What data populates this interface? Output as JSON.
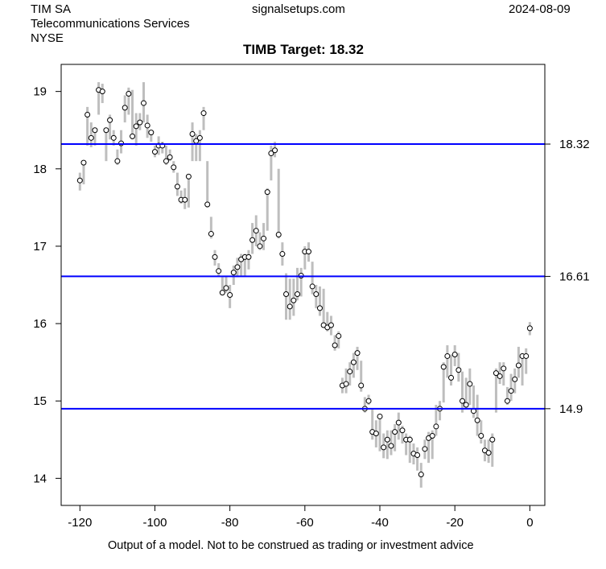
{
  "header": {
    "company": "TIM SA",
    "sector": "Telecommunications Services",
    "exchange": "NYSE",
    "site": "signalsetups.com",
    "date": "2024-08-09"
  },
  "footer": "Output of a model. Not to be construed as trading or investment advice",
  "colors": {
    "target_line": "#0000ff",
    "bar": "#bebebe",
    "point": "#000000"
  },
  "chart_data": {
    "type": "scatter",
    "title": "TIMB Target: 18.32",
    "xlabel": "",
    "ylabel": "",
    "xlim": [
      -125,
      4
    ],
    "ylim": [
      13.65,
      19.35
    ],
    "xticks": [
      -120,
      -100,
      -80,
      -60,
      -40,
      -20,
      0
    ],
    "xtick_labels": [
      "-120",
      "-100",
      "-80",
      "-60",
      "-40",
      "-20",
      "0"
    ],
    "yticks": [
      14,
      15,
      16,
      17,
      18,
      19
    ],
    "ytick_labels": [
      "14",
      "15",
      "16",
      "17",
      "18",
      "19"
    ],
    "hlines": [
      {
        "value": 18.32,
        "label": "18.32"
      },
      {
        "value": 16.61,
        "label": "16.61"
      },
      {
        "value": 14.9,
        "label": "14.9"
      }
    ],
    "points_format": "[x, close, low, high]",
    "points": [
      [
        -120,
        17.85,
        17.72,
        17.95
      ],
      [
        -119,
        18.08,
        17.8,
        18.1
      ],
      [
        -118,
        18.7,
        18.3,
        18.8
      ],
      [
        -117,
        18.4,
        18.28,
        18.6
      ],
      [
        -116,
        18.5,
        18.3,
        18.52
      ],
      [
        -115,
        19.02,
        18.7,
        19.12
      ],
      [
        -114,
        19.0,
        18.85,
        19.1
      ],
      [
        -113,
        18.5,
        18.1,
        18.52
      ],
      [
        -112,
        18.63,
        18.38,
        18.7
      ],
      [
        -111,
        18.4,
        18.3,
        18.5
      ],
      [
        -110,
        18.1,
        18.05,
        18.25
      ],
      [
        -109,
        18.33,
        18.2,
        18.5
      ],
      [
        -108,
        18.79,
        18.6,
        18.95
      ],
      [
        -107,
        18.97,
        18.7,
        19.05
      ],
      [
        -106,
        18.42,
        18.38,
        19.02
      ],
      [
        -105,
        18.55,
        18.3,
        18.72
      ],
      [
        -104,
        18.6,
        18.5,
        18.72
      ],
      [
        -103,
        18.85,
        18.6,
        19.12
      ],
      [
        -102,
        18.56,
        18.4,
        18.7
      ],
      [
        -101,
        18.47,
        18.35,
        18.5
      ],
      [
        -100,
        18.22,
        18.15,
        18.3
      ],
      [
        -99,
        18.3,
        18.18,
        18.42
      ],
      [
        -98,
        18.3,
        18.2,
        18.35
      ],
      [
        -97,
        18.1,
        18.05,
        18.3
      ],
      [
        -96,
        18.15,
        18.1,
        18.25
      ],
      [
        -95,
        18.02,
        17.95,
        18.1
      ],
      [
        -94,
        17.77,
        17.65,
        17.95
      ],
      [
        -93,
        17.6,
        17.55,
        17.72
      ],
      [
        -92,
        17.6,
        17.48,
        17.75
      ],
      [
        -91,
        17.9,
        17.5,
        17.92
      ],
      [
        -90,
        18.45,
        18.1,
        18.6
      ],
      [
        -89,
        18.36,
        18.1,
        18.45
      ],
      [
        -88,
        18.4,
        18.1,
        18.5
      ],
      [
        -87,
        18.72,
        18.5,
        18.8
      ],
      [
        -86,
        17.54,
        17.5,
        18.1
      ],
      [
        -85,
        17.16,
        17.1,
        17.38
      ],
      [
        -84,
        16.86,
        16.75,
        16.95
      ],
      [
        -83,
        16.68,
        16.62,
        16.78
      ],
      [
        -82,
        16.4,
        16.38,
        16.6
      ],
      [
        -81,
        16.46,
        16.4,
        16.62
      ],
      [
        -80,
        16.37,
        16.2,
        16.5
      ],
      [
        -79,
        16.66,
        16.5,
        16.75
      ],
      [
        -78,
        16.73,
        16.6,
        16.85
      ],
      [
        -77,
        16.83,
        16.62,
        16.9
      ],
      [
        -76,
        16.86,
        16.62,
        16.9
      ],
      [
        -75,
        16.86,
        16.7,
        16.95
      ],
      [
        -74,
        17.08,
        16.9,
        17.3
      ],
      [
        -73,
        17.2,
        17.0,
        17.4
      ],
      [
        -72,
        17.0,
        16.95,
        17.18
      ],
      [
        -71,
        17.1,
        16.95,
        17.3
      ],
      [
        -70,
        17.7,
        17.2,
        17.75
      ],
      [
        -69,
        18.2,
        17.85,
        18.3
      ],
      [
        -68,
        18.24,
        18.15,
        18.35
      ],
      [
        -67,
        17.15,
        17.1,
        18.0
      ],
      [
        -66,
        16.9,
        16.75,
        17.05
      ],
      [
        -65,
        16.38,
        16.05,
        16.65
      ],
      [
        -64,
        16.22,
        16.05,
        16.58
      ],
      [
        -63,
        16.3,
        16.1,
        16.58
      ],
      [
        -62,
        16.38,
        16.3,
        16.72
      ],
      [
        -61,
        16.62,
        16.35,
        16.72
      ],
      [
        -60,
        16.93,
        16.7,
        17.0
      ],
      [
        -59,
        16.93,
        16.8,
        17.05
      ],
      [
        -58,
        16.48,
        16.38,
        16.8
      ],
      [
        -57,
        16.38,
        16.2,
        16.5
      ],
      [
        -56,
        16.2,
        16.1,
        16.48
      ],
      [
        -55,
        15.98,
        15.95,
        16.45
      ],
      [
        -54,
        15.95,
        15.9,
        16.15
      ],
      [
        -53,
        15.98,
        15.85,
        16.1
      ],
      [
        -52,
        15.72,
        15.65,
        15.85
      ],
      [
        -51,
        15.84,
        15.68,
        15.9
      ],
      [
        -50,
        15.2,
        15.1,
        15.3
      ],
      [
        -49,
        15.22,
        15.1,
        15.42
      ],
      [
        -48,
        15.38,
        15.2,
        15.5
      ],
      [
        -47,
        15.5,
        15.3,
        15.62
      ],
      [
        -46,
        15.62,
        15.4,
        15.7
      ],
      [
        -45,
        15.2,
        15.12,
        15.52
      ],
      [
        -44,
        14.9,
        14.85,
        15.05
      ],
      [
        -43,
        15.0,
        14.95,
        15.08
      ],
      [
        -42,
        14.6,
        14.5,
        14.9
      ],
      [
        -41,
        14.58,
        14.4,
        14.75
      ],
      [
        -40,
        14.8,
        14.35,
        14.82
      ],
      [
        -39,
        14.4,
        14.26,
        14.58
      ],
      [
        -38,
        14.5,
        14.25,
        14.62
      ],
      [
        -37,
        14.42,
        14.3,
        14.62
      ],
      [
        -36,
        14.6,
        14.35,
        14.7
      ],
      [
        -35,
        14.72,
        14.5,
        14.85
      ],
      [
        -34,
        14.62,
        14.45,
        14.68
      ],
      [
        -33,
        14.5,
        14.3,
        14.58
      ],
      [
        -32,
        14.5,
        14.2,
        14.55
      ],
      [
        -31,
        14.32,
        14.18,
        14.45
      ],
      [
        -30,
        14.3,
        14.1,
        14.4
      ],
      [
        -29,
        14.05,
        13.88,
        14.2
      ],
      [
        -28,
        14.38,
        14.25,
        14.5
      ],
      [
        -27,
        14.52,
        14.2,
        14.6
      ],
      [
        -26,
        14.55,
        14.25,
        14.62
      ],
      [
        -25,
        14.67,
        14.55,
        14.95
      ],
      [
        -24,
        14.9,
        14.75,
        15.0
      ],
      [
        -23,
        15.44,
        14.98,
        15.5
      ],
      [
        -22,
        15.58,
        15.3,
        15.72
      ],
      [
        -21,
        15.3,
        15.2,
        15.6
      ],
      [
        -20,
        15.6,
        15.45,
        15.72
      ],
      [
        -19,
        15.4,
        15.25,
        15.62
      ],
      [
        -18,
        15.0,
        14.85,
        15.38
      ],
      [
        -17,
        14.95,
        14.9,
        15.3
      ],
      [
        -16,
        15.22,
        14.95,
        15.42
      ],
      [
        -15,
        14.87,
        14.78,
        15.2
      ],
      [
        -14,
        14.75,
        14.55,
        15.08
      ],
      [
        -13,
        14.55,
        14.45,
        14.75
      ],
      [
        -12,
        14.36,
        14.22,
        14.5
      ],
      [
        -11,
        14.33,
        14.2,
        14.5
      ],
      [
        -10,
        14.5,
        14.15,
        14.58
      ],
      [
        -9,
        15.36,
        14.85,
        15.42
      ],
      [
        -8,
        15.32,
        15.22,
        15.5
      ],
      [
        -7,
        15.42,
        15.2,
        15.5
      ],
      [
        -6,
        15.0,
        14.95,
        15.18
      ],
      [
        -5,
        15.13,
        15.0,
        15.35
      ],
      [
        -4,
        15.28,
        15.1,
        15.42
      ],
      [
        -3,
        15.46,
        15.3,
        15.7
      ],
      [
        -2,
        15.58,
        15.2,
        15.62
      ],
      [
        -1,
        15.58,
        15.35,
        15.68
      ],
      [
        0,
        15.94,
        15.85,
        16.02
      ]
    ]
  }
}
